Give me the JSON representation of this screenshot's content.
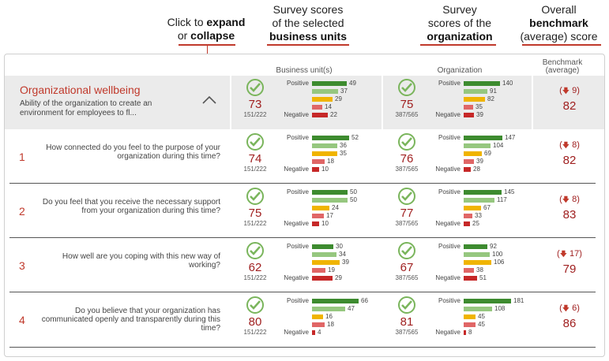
{
  "annotations": {
    "expand": {
      "pre": "Click to ",
      "b1": "expand",
      "mid": "or ",
      "b2": "collapse"
    },
    "bu": {
      "l1": "Survey scores",
      "l2": "of the selected",
      "b": "business units"
    },
    "org": {
      "l1": "Survey",
      "l2": "scores of the",
      "b": "organization"
    },
    "bench": {
      "l1": "Overall",
      "b": "benchmark",
      "l2": "(average) score"
    }
  },
  "headers": {
    "bu": "Business unit(s)",
    "org": "Organization",
    "bench_l1": "Benchmark",
    "bench_l2": "(average)"
  },
  "labels": {
    "positive": "Positive",
    "negative": "Negative"
  },
  "colors": {
    "c1": "#3d8b2f",
    "c2": "#96c77f",
    "c3": "#f0b400",
    "c4": "#e06666",
    "c5": "#c62828"
  },
  "summary": {
    "title": "Organizational wellbeing",
    "desc": "Ability of the organization to create an environment for employees to fl...",
    "bu": {
      "score": "73",
      "ratio": "151/222",
      "bars": [
        49,
        37,
        29,
        14,
        22
      ]
    },
    "org": {
      "score": "75",
      "ratio": "387/565",
      "bars": [
        140,
        91,
        82,
        35,
        39
      ]
    },
    "bench": {
      "delta": "9",
      "score": "82"
    }
  },
  "questions": [
    {
      "index": "1",
      "text": "How connected do you feel to the purpose of your organization during this time?",
      "bu": {
        "score": "74",
        "ratio": "151/222",
        "bars": [
          52,
          36,
          35,
          18,
          10
        ]
      },
      "org": {
        "score": "76",
        "ratio": "387/565",
        "bars": [
          147,
          104,
          69,
          39,
          28
        ]
      },
      "bench": {
        "delta": "8",
        "score": "82"
      }
    },
    {
      "index": "2",
      "text": "Do you feel that you receive the necessary support from your organization during this time?",
      "bu": {
        "score": "75",
        "ratio": "151/222",
        "bars": [
          50,
          50,
          24,
          17,
          10
        ]
      },
      "org": {
        "score": "77",
        "ratio": "387/565",
        "bars": [
          145,
          117,
          67,
          33,
          25
        ]
      },
      "bench": {
        "delta": "8",
        "score": "83"
      }
    },
    {
      "index": "3",
      "text": "How well are you coping with this new way of working?",
      "bu": {
        "score": "62",
        "ratio": "151/222",
        "bars": [
          30,
          34,
          39,
          19,
          29
        ]
      },
      "org": {
        "score": "67",
        "ratio": "387/565",
        "bars": [
          92,
          100,
          106,
          38,
          51
        ]
      },
      "bench": {
        "delta": "17",
        "score": "79"
      }
    },
    {
      "index": "4",
      "text": "Do you believe that your organization has communicated openly and transparently during this time?",
      "bu": {
        "score": "80",
        "ratio": "151/222",
        "bars": [
          66,
          47,
          16,
          18,
          4
        ]
      },
      "org": {
        "score": "81",
        "ratio": "387/565",
        "bars": [
          181,
          108,
          45,
          45,
          8
        ]
      },
      "bench": {
        "delta": "6",
        "score": "86"
      }
    }
  ]
}
